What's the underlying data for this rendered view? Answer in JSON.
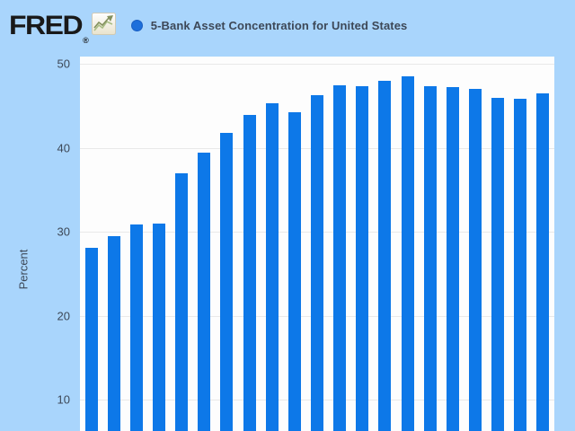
{
  "colors": {
    "page_background": "#a9d5fc",
    "plot_background": "#fdfdfd",
    "bar": "#0d78e8",
    "gridline": "#e9e9e9",
    "text": "#3d4857",
    "logo": "#191919",
    "legend_dot": "#1d6fdb"
  },
  "header": {
    "logo_text": "FRED",
    "registered_mark": "®",
    "series_title": "5-Bank Asset Concentration for United States"
  },
  "yaxis": {
    "label": "Percent",
    "tick_labels": [
      "50",
      "40",
      "30",
      "20",
      "10"
    ]
  },
  "chart_data": {
    "type": "bar",
    "title": "5-Bank Asset Concentration for United States",
    "ylabel": "Percent",
    "series_name": "5-Bank Asset Concentration for United States",
    "values": [
      28.1,
      29.5,
      30.9,
      31.0,
      37.0,
      39.5,
      41.8,
      44.0,
      45.3,
      44.3,
      46.3,
      47.5,
      47.4,
      48.0,
      48.6,
      47.4,
      47.3,
      47.0,
      46.0,
      45.9,
      46.5
    ],
    "bar_count": 21,
    "yticks": [
      10,
      20,
      30,
      40,
      50
    ],
    "ylim_visible": [
      6.3,
      50.9
    ],
    "grid": "horizontal",
    "legend_position": "top",
    "x_axis_labels_visible": false,
    "bottom_cropped": true
  }
}
